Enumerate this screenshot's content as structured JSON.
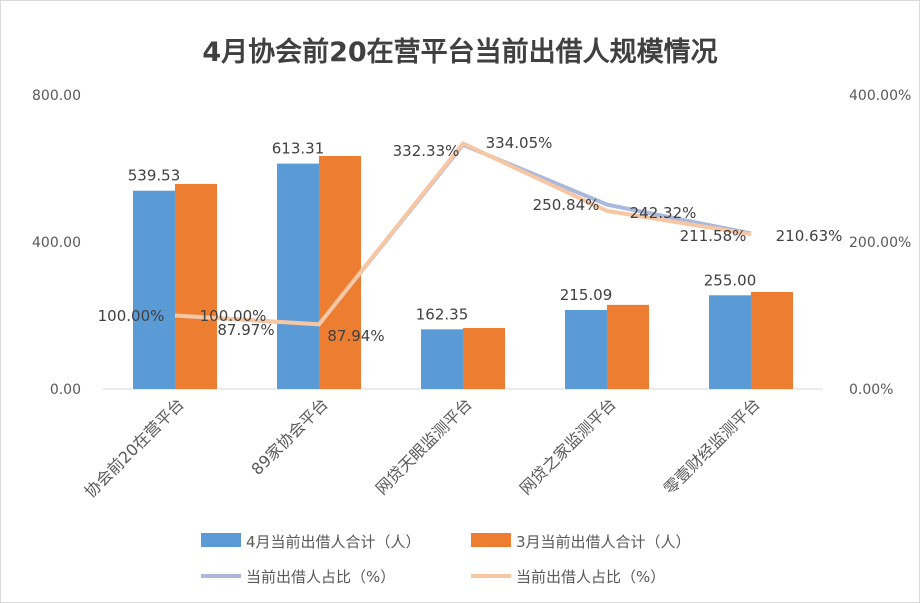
{
  "chart_data": {
    "type": "bar",
    "title": "4月协会前20在营平台当前出借人规模情况",
    "categories": [
      "协会前20在营平台",
      "89家协会平台",
      "网贷天眼监测平台",
      "网贷之家监测平台",
      "零壹财经监测平台"
    ],
    "series": [
      {
        "name": "4月当前出借人合计（人）",
        "type": "bar",
        "axis": "left",
        "color": "#5B9BD5",
        "values": [
          539.53,
          613.31,
          162.35,
          215.09,
          255.0
        ],
        "labels": [
          "539.53",
          "613.31",
          "162.35",
          "215.09",
          "255.00"
        ]
      },
      {
        "name": "3月当前出借人合计（人）",
        "type": "bar",
        "axis": "left",
        "color": "#ED7D31",
        "values": [
          558,
          634,
          166,
          229,
          264
        ],
        "labels": []
      },
      {
        "name": "当前出借人占比（%）",
        "type": "line",
        "axis": "right",
        "color": "#A9B8DC",
        "values": [
          100.0,
          87.97,
          332.33,
          250.84,
          211.58
        ],
        "labels": [
          "100.00%",
          "87.97%",
          "332.33%",
          "250.84%",
          "211.58%"
        ]
      },
      {
        "name": "当前出借人占比（%）",
        "type": "line",
        "axis": "right",
        "color": "#F7C6A3",
        "values": [
          100.0,
          87.94,
          334.05,
          242.32,
          210.63
        ],
        "labels": [
          "100.00%",
          "87.94%",
          "334.05%",
          "242.32%",
          "210.63%"
        ]
      }
    ],
    "ylim": [
      0,
      800
    ],
    "yticks": [
      "0.00",
      "400.00",
      "800.00"
    ],
    "y2lim": [
      0,
      400
    ],
    "y2ticks": [
      "0.00%",
      "200.00%",
      "400.00%"
    ],
    "grid": false,
    "legend": "bottom"
  }
}
